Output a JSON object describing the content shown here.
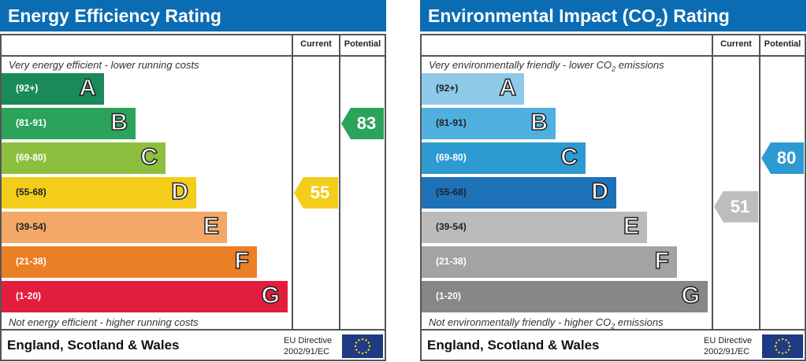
{
  "chart_data": [
    {
      "type": "bar",
      "title": "Energy Efficiency Rating",
      "columns": [
        "Current",
        "Potential"
      ],
      "top_caption": "Very energy efficient - lower running costs",
      "bottom_caption": "Not energy efficient - higher running costs",
      "bands": [
        {
          "letter": "A",
          "range": "(92+)",
          "color": "#1a8a5a"
        },
        {
          "letter": "B",
          "range": "(81-91)",
          "color": "#2ca35a"
        },
        {
          "letter": "C",
          "range": "(69-80)",
          "color": "#8dbf3f"
        },
        {
          "letter": "D",
          "range": "(55-68)",
          "color": "#f4cd1a"
        },
        {
          "letter": "E",
          "range": "(39-54)",
          "color": "#f3a868"
        },
        {
          "letter": "F",
          "range": "(21-38)",
          "color": "#eb7f26"
        },
        {
          "letter": "G",
          "range": "(1-20)",
          "color": "#e31d3c"
        }
      ],
      "current": {
        "value": "55",
        "color": "#f4cd1a"
      },
      "potential": {
        "value": "83",
        "color": "#2ca35a"
      },
      "footer": "England, Scotland & Wales",
      "directive": [
        "EU Directive",
        "2002/91/EC"
      ]
    },
    {
      "type": "bar",
      "title": "Environmental Impact (CO2) Rating",
      "title_parts": [
        "Environmental Impact (CO",
        "2",
        ") Rating"
      ],
      "columns": [
        "Current",
        "Potential"
      ],
      "top_caption_parts": [
        "Very environmentally friendly - lower CO",
        "2",
        " emissions"
      ],
      "bottom_caption_parts": [
        "Not environmentally friendly - higher CO",
        "2",
        " emissions"
      ],
      "bands": [
        {
          "letter": "A",
          "range": "(92+)",
          "color": "#8fc9ea"
        },
        {
          "letter": "B",
          "range": "(81-91)",
          "color": "#4fb0e0"
        },
        {
          "letter": "C",
          "range": "(69-80)",
          "color": "#2e9ad2"
        },
        {
          "letter": "D",
          "range": "(55-68)",
          "color": "#1e72b8"
        },
        {
          "letter": "E",
          "range": "(39-54)",
          "color": "#bbbbbb"
        },
        {
          "letter": "F",
          "range": "(21-38)",
          "color": "#a3a3a3"
        },
        {
          "letter": "G",
          "range": "(1-20)",
          "color": "#878787"
        }
      ],
      "current": {
        "value": "51",
        "color": "#bdbdbd"
      },
      "potential": {
        "value": "80",
        "color": "#2e9ad2"
      },
      "footer": "England, Scotland & Wales",
      "directive": [
        "EU Directive",
        "2002/91/EC"
      ]
    }
  ]
}
